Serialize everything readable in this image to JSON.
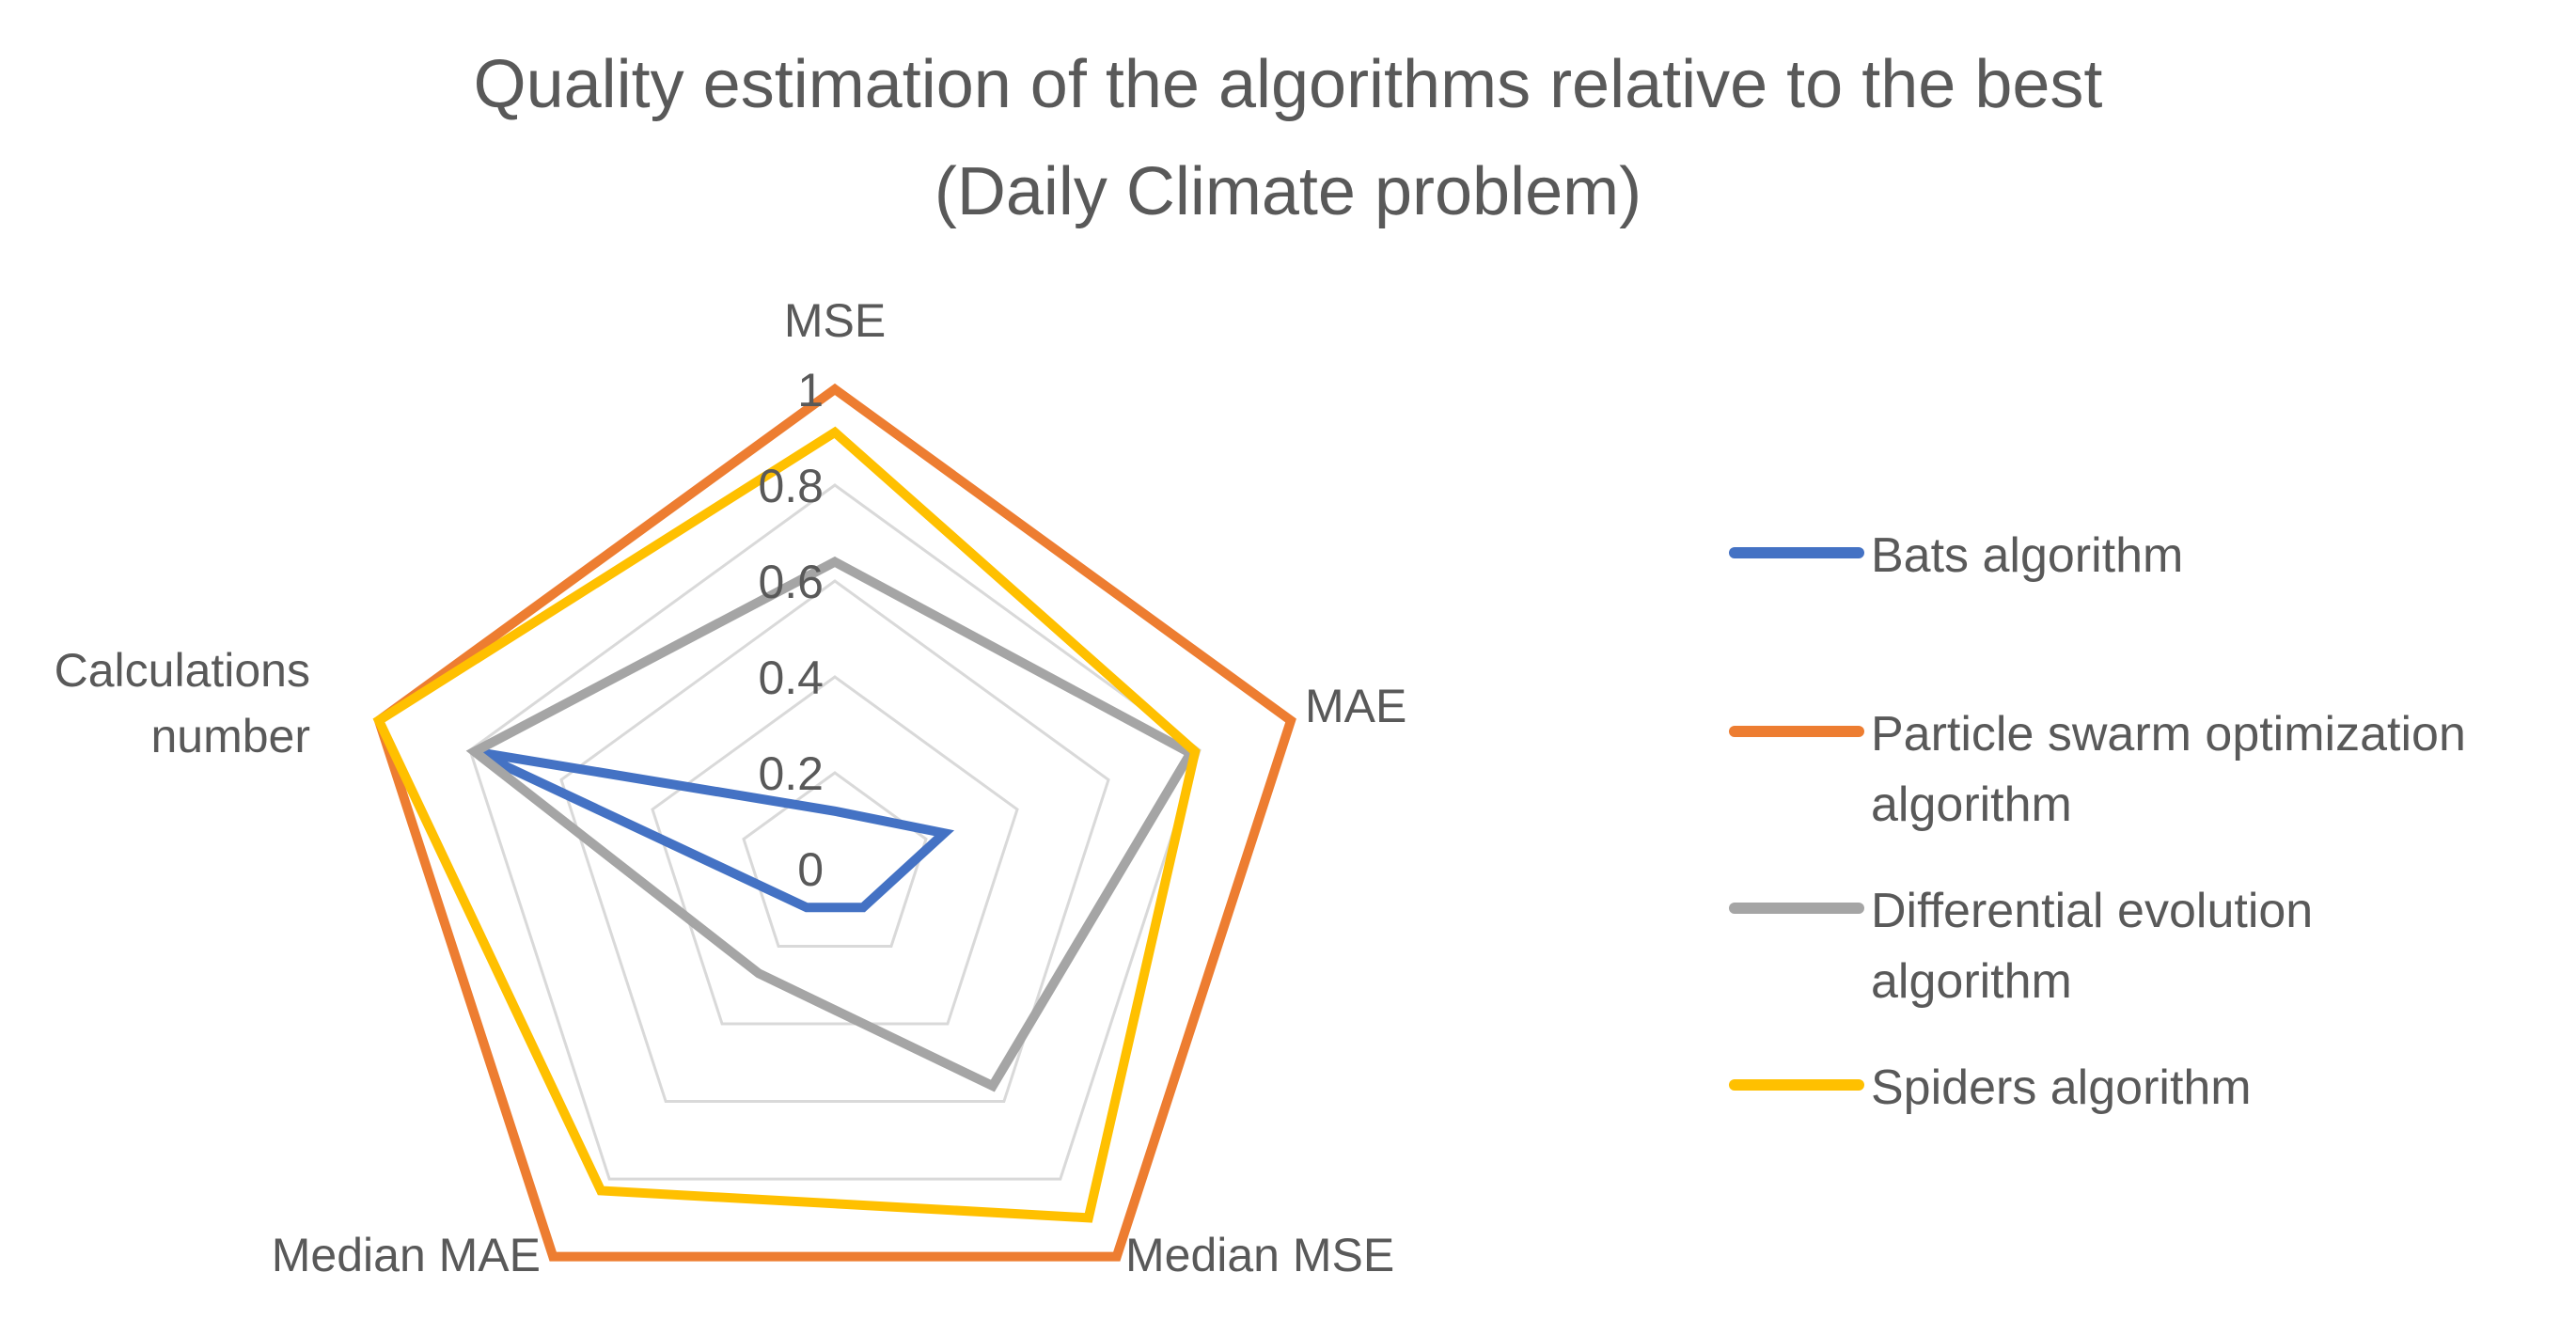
{
  "chart_data": {
    "type": "radar",
    "title_lines": [
      "Quality estimation of the algorithms relative to the best",
      "(Daily Climate problem)"
    ],
    "axes": [
      "MSE",
      "MAE",
      "Median MSE",
      "Median MAE",
      "Calculations number"
    ],
    "axis_label_lines": [
      [
        "MSE"
      ],
      [
        "MAE"
      ],
      [
        "Median MSE"
      ],
      [
        "Median MAE"
      ],
      [
        "Calculations",
        "number"
      ]
    ],
    "rlim": [
      0,
      1
    ],
    "ticks": [
      0,
      0.2,
      0.4,
      0.6,
      0.8,
      1
    ],
    "tick_labels": [
      "0",
      "0.2",
      "0.4",
      "0.6",
      "0.8",
      "1"
    ],
    "grid": true,
    "legend_position": "right",
    "series": [
      {
        "name_lines": [
          "Bats algorithm"
        ],
        "color": "#4472C4",
        "values": [
          0.12,
          0.24,
          0.1,
          0.1,
          0.79
        ]
      },
      {
        "name_lines": [
          "Particle swarm optimization",
          "algorithm"
        ],
        "color": "#ED7D31",
        "values": [
          1.0,
          1.0,
          1.0,
          1.0,
          1.0
        ]
      },
      {
        "name_lines": [
          "Differential evolution",
          "algorithm"
        ],
        "color": "#A5A5A5",
        "values": [
          0.64,
          0.78,
          0.56,
          0.27,
          0.79
        ]
      },
      {
        "name_lines": [
          "Spiders algorithm"
        ],
        "color": "#FFC000",
        "values": [
          0.91,
          0.79,
          0.9,
          0.83,
          1.0
        ]
      }
    ]
  }
}
